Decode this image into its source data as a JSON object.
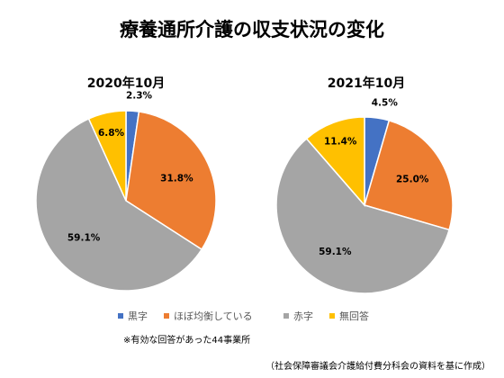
{
  "chart_data": {
    "type": "pie",
    "title": "療養通所介護の収支状況の変化",
    "categories": [
      "黒字",
      "ほぼ均衡している",
      "赤字",
      "無回答"
    ],
    "colors": [
      "#4472C4",
      "#ED7D31",
      "#A5A5A5",
      "#FFC000"
    ],
    "charts": [
      {
        "subtitle": "2020年10月",
        "values": [
          2.3,
          31.8,
          59.1,
          6.8
        ],
        "labels": [
          "2.3%",
          "31.8%",
          "59.1%",
          "6.8%"
        ]
      },
      {
        "subtitle": "2021年10月",
        "values": [
          4.5,
          25.0,
          59.1,
          11.4
        ],
        "labels": [
          "4.5%",
          "25.0%",
          "59.1%",
          "11.4%"
        ]
      }
    ],
    "legend_placement": "bottom"
  },
  "notes": {
    "respondents": "※有効な回答があった44事業所",
    "source": "（社会保障審議会介護給付費分科会の資料を基に作成）"
  }
}
